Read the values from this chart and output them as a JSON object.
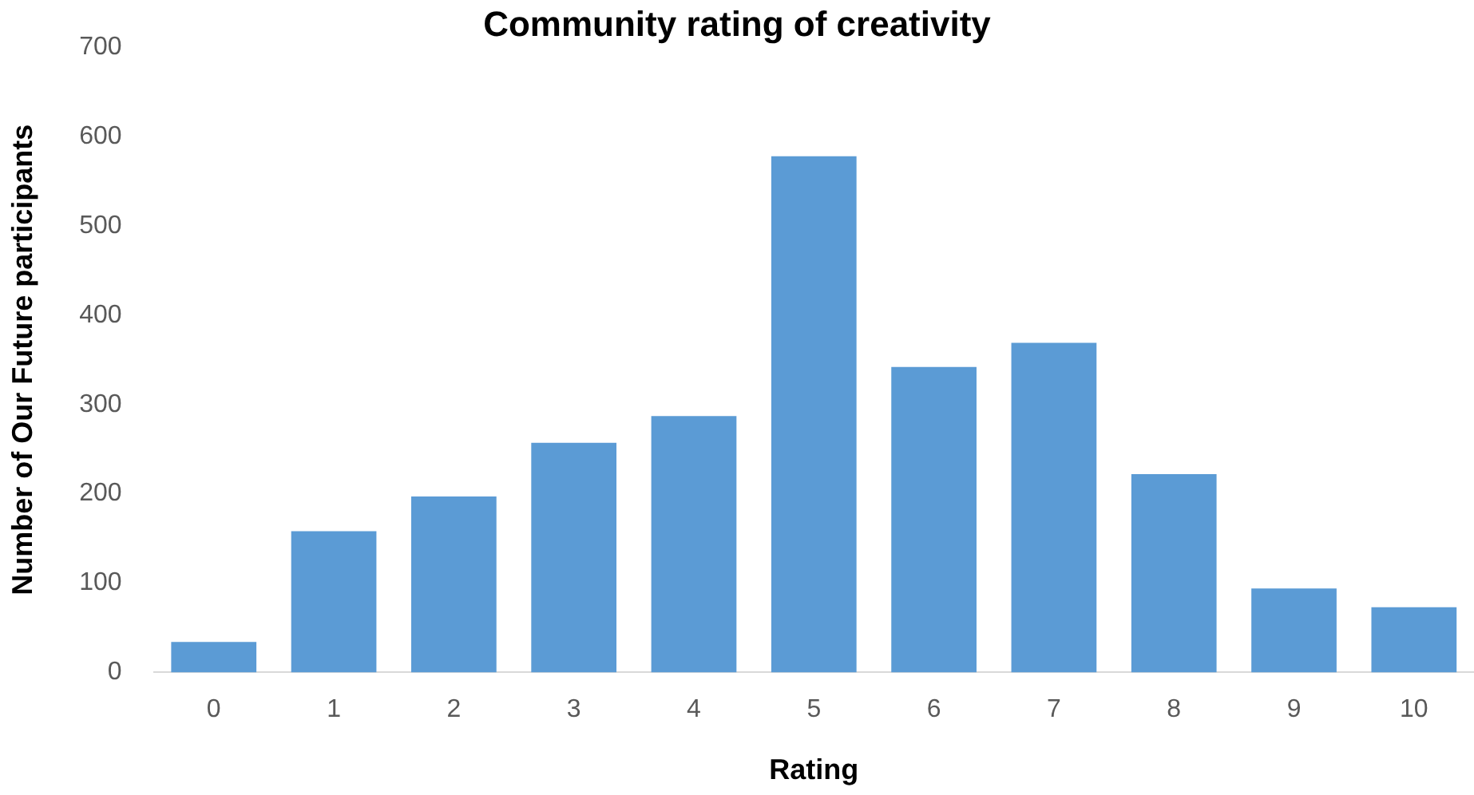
{
  "chart_data": {
    "type": "bar",
    "title": "Community rating of creativity",
    "xlabel": "Rating",
    "ylabel": "Number of Our Future participants",
    "categories": [
      "0",
      "1",
      "2",
      "3",
      "4",
      "5",
      "6",
      "7",
      "8",
      "9",
      "10"
    ],
    "values": [
      34,
      158,
      197,
      257,
      287,
      578,
      342,
      369,
      222,
      94,
      73
    ],
    "color": "#5b9bd5",
    "ylim": [
      0,
      700
    ],
    "yticks": [
      0,
      100,
      200,
      300,
      400,
      500,
      600,
      700
    ],
    "grid": false,
    "legend": false
  }
}
